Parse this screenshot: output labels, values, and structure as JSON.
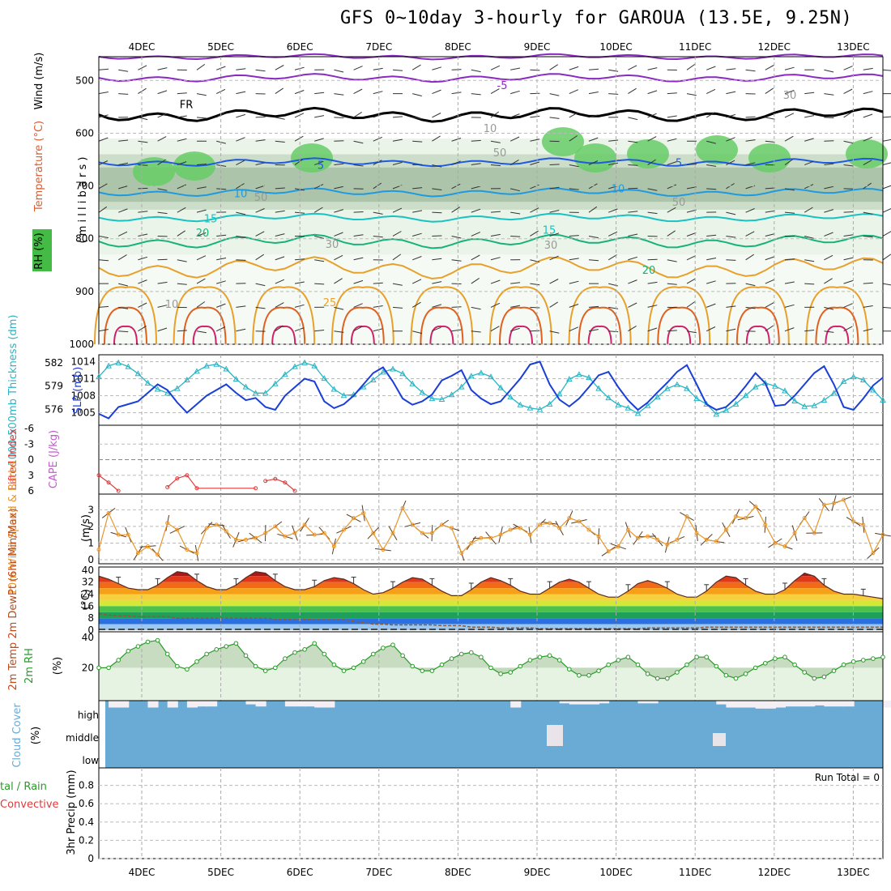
{
  "chart_data": {
    "title": "GFS 0~10day 3-hourly for GAROUA (13.5E, 9.25N)",
    "type": "meteogram",
    "dates": [
      "4DEC",
      "5DEC",
      "6DEC",
      "7DEC",
      "8DEC",
      "9DEC",
      "10DEC",
      "11DEC",
      "12DEC",
      "13DEC"
    ],
    "upper_panel": {
      "ylabels": {
        "wind": "Wind",
        "wind_unit": "(m/s)",
        "temp": "Temperature",
        "temp_unit": "(°C)",
        "rh": "RH (%)",
        "pressure": "( m i l l i b a r s )"
      },
      "pressure_ticks": [
        "500",
        "600",
        "700",
        "800",
        "900",
        "1000"
      ],
      "contour_labels": {
        "fr": "FR",
        "m5": "-5",
        "p5": "5",
        "p10": "10",
        "p15": "15",
        "p20": "20",
        "p25": "25",
        "rh10": "10",
        "rh30": "30",
        "rh50": "50"
      },
      "isotherm_levels_mb": {
        "m5": 495,
        "fr": 565,
        "p5": 655,
        "p10": 712,
        "p15": 760,
        "p20": 805
      }
    },
    "slp_panel": {
      "ylabel_thick": "1000-500mb Thickness (dm)",
      "ylabel_slp": "SLP (mb)",
      "thick_ticks": [
        "582",
        "579",
        "576"
      ],
      "slp_ticks": [
        "1014",
        "1011",
        "1008",
        "1005"
      ],
      "slp_series": [
        1004.8,
        1004,
        1006,
        1006.5,
        1007,
        1008.5,
        1010,
        1009,
        1006.8,
        1005,
        1006.5,
        1008,
        1009,
        1010,
        1008.5,
        1007.2,
        1007.6,
        1006,
        1005.5,
        1008,
        1009.5,
        1011,
        1010.5,
        1007,
        1005.8,
        1006.5,
        1008,
        1010,
        1012,
        1013,
        1010.5,
        1007.5,
        1006.4,
        1007,
        1008.2,
        1010.7,
        1011.5,
        1012.5,
        1009,
        1007.5,
        1006.5,
        1007,
        1009,
        1011,
        1013.5,
        1014,
        1010,
        1007.3,
        1006.1,
        1007.5,
        1009.5,
        1011.6,
        1012.2,
        1009.5,
        1007.2,
        1005.5,
        1006.8,
        1008.6,
        1010.3,
        1012.2,
        1013.4,
        1010,
        1006.5,
        1005.5,
        1006,
        1007.6,
        1009.7,
        1012,
        1010.2,
        1006.2,
        1006.4,
        1008,
        1010,
        1012,
        1013.2,
        1010,
        1006,
        1005.5,
        1007.5,
        1009.8,
        1011.2
      ],
      "thick_series": [
        580.2,
        581.6,
        582,
        581.5,
        580.6,
        579.4,
        578.6,
        578.1,
        578.7,
        579.8,
        580.9,
        581.6,
        581.8,
        581.2,
        579.9,
        578.9,
        578.1,
        578.1,
        579.3,
        580.5,
        581.5,
        582,
        581.6,
        580,
        578.6,
        577.8,
        577.9,
        578.9,
        579.8,
        580.8,
        581.2,
        580.6,
        579.3,
        578.2,
        577.4,
        577.3,
        577.9,
        578.9,
        580.3,
        580.7,
        580.2,
        578.8,
        577.6,
        576.6,
        576.2,
        576,
        576.7,
        578,
        579.9,
        580.5,
        580.1,
        578.7,
        577.5,
        576.6,
        576.2,
        575.5,
        576.5,
        577.6,
        578.7,
        579.2,
        578.7,
        577.4,
        576.7,
        575.4,
        575.9,
        576.7,
        577.8,
        578.9,
        579.4,
        579,
        578.4,
        577.1,
        576.4,
        576.5,
        577.2,
        578.1,
        579.6,
        580.2,
        579.8,
        578.5,
        577.2
      ]
    },
    "cape_panel": {
      "ylabel_li": "Lifted Index",
      "ylabel_cape": "CAPE (J/kg)",
      "li_ticks": [
        "-6",
        "-3",
        "0",
        "3",
        "6"
      ],
      "li_series": [
        [
          0,
          3
        ],
        [
          1,
          4.4
        ],
        [
          2,
          6
        ],
        [
          7,
          5.3
        ],
        [
          8,
          3.6
        ],
        [
          9,
          3
        ],
        [
          10,
          5.5
        ],
        [
          16,
          5.5
        ],
        [
          17,
          4.1
        ],
        [
          18,
          3.7
        ],
        [
          19,
          4.4
        ],
        [
          20,
          6
        ]
      ]
    },
    "wind_panel": {
      "ylabel": "10m Wind Speed & Barbs",
      "unit": "(m/s)",
      "ticks": [
        "0",
        "1",
        "2",
        "3"
      ],
      "series": [
        0.6,
        2.8,
        1.5,
        1.5,
        0.4,
        0.8,
        0.3,
        2.2,
        1.8,
        0.6,
        0.4,
        1.9,
        2.1,
        1.7,
        1.2,
        1.2,
        1.3,
        1.6,
        2,
        1.4,
        1.6,
        2.1,
        1.5,
        1.6,
        0.8,
        1.8,
        2.5,
        2.8,
        1.6,
        0.6,
        1.6,
        3.1,
        2.1,
        1.6,
        1.6,
        2.1,
        1.9,
        0.4,
        1,
        1.3,
        1.3,
        1.5,
        1.8,
        1.9,
        1.5,
        2.1,
        2.2,
        1.9,
        2.5,
        2.3,
        1.8,
        1.4,
        0.5,
        0.8,
        1.8,
        1.3,
        1.4,
        1.2,
        0.9,
        1.2,
        2.6,
        1.6,
        1.2,
        1.1,
        1.8,
        2.6,
        2.5,
        3.2,
        2.1,
        1,
        0.8,
        1.6,
        2.5,
        1.6,
        3.3,
        3.4,
        3.6,
        2.3,
        2.1,
        0.4,
        1.5
      ]
    },
    "temp_panel": {
      "ylabel": "2m Temp 2m DewPt (6hr Min/Max)",
      "unit": "(°C)",
      "ticks": [
        "40",
        "32",
        "24",
        "16",
        "8",
        "0"
      ],
      "temp_series": [
        36,
        34,
        31,
        28,
        27,
        27,
        30,
        35,
        39,
        38,
        33,
        29,
        27,
        27,
        30,
        35,
        39,
        38,
        33,
        29,
        27,
        27,
        29,
        33,
        35,
        34,
        31,
        27,
        24,
        25,
        28,
        32,
        35,
        34,
        30,
        26,
        23,
        23,
        27,
        32,
        35,
        33,
        30,
        26,
        24,
        24,
        28,
        32,
        34,
        32,
        28,
        24,
        22,
        22,
        26,
        31,
        33,
        31,
        28,
        24,
        22,
        22,
        26,
        32,
        36,
        35,
        30,
        26,
        24,
        24,
        27,
        33,
        38,
        36,
        30,
        26,
        24,
        24,
        23,
        22,
        21
      ],
      "dew_series": [
        11,
        10,
        9.5,
        9.5,
        9,
        9,
        9,
        9,
        8,
        8,
        8,
        8,
        8,
        8,
        8,
        8,
        8,
        8,
        7.5,
        7.5,
        7.5,
        7.5,
        7,
        7,
        7,
        7,
        6,
        5,
        4,
        4,
        3.5,
        3.5,
        3.5,
        3.5,
        3.5,
        3,
        3,
        3,
        2,
        2,
        2,
        1.5,
        1.5,
        1.5,
        1.5,
        1,
        1,
        1,
        1,
        1,
        1,
        1,
        1,
        1,
        1,
        1,
        1.5,
        1.5,
        1.5,
        1.5,
        1.5,
        1.5,
        2,
        2,
        2,
        2,
        2,
        2,
        2,
        2,
        2,
        2,
        2,
        2,
        2,
        2,
        2,
        2,
        2,
        2,
        2
      ]
    },
    "rh_panel": {
      "ylabel": "2m RH",
      "unit": "(%)",
      "ticks": [
        "40",
        "20"
      ],
      "series": [
        20,
        20,
        25,
        31,
        34,
        37,
        38,
        29,
        21,
        19,
        24,
        29,
        32,
        34,
        36,
        28,
        21,
        18,
        20,
        26,
        30,
        32,
        36,
        29,
        22,
        18,
        20,
        24,
        29,
        33,
        35,
        28,
        21,
        18,
        18,
        22,
        26,
        29,
        30,
        27,
        20,
        16,
        17,
        21,
        25,
        27,
        28,
        25,
        19,
        15,
        15,
        18,
        22,
        25,
        27,
        22,
        16,
        13,
        13,
        17,
        22,
        27,
        27,
        21,
        15,
        13,
        16,
        20,
        23,
        26,
        27,
        22,
        17,
        13,
        14,
        18,
        22,
        24,
        25,
        26,
        27
      ]
    },
    "cloud_panel": {
      "ylabel": "Cloud Cover",
      "unit": "(%)",
      "levels": [
        "high",
        "middle",
        "low"
      ],
      "high_series": [
        100,
        75,
        75,
        100,
        100,
        75,
        100,
        75,
        100,
        75,
        80,
        80,
        100,
        100,
        100,
        90,
        80,
        100,
        100,
        80,
        80,
        80,
        75,
        75,
        100,
        100,
        100,
        100,
        100,
        100,
        100,
        100,
        100,
        100,
        100,
        100,
        100,
        100,
        100,
        100,
        100,
        100,
        75,
        100,
        100,
        100,
        100,
        95,
        90,
        90,
        90,
        95,
        100,
        100,
        100,
        95,
        95,
        100,
        100,
        100,
        100,
        100,
        100,
        90,
        75,
        75,
        75,
        70,
        70,
        75,
        80,
        80,
        80,
        85,
        80,
        80,
        80,
        100,
        100,
        100,
        75
      ],
      "middle_gap_series": [
        0,
        0,
        0,
        0,
        0,
        0,
        0,
        0,
        0,
        0,
        0,
        0,
        0,
        0,
        0,
        0,
        0,
        0,
        0,
        0,
        0,
        0,
        0,
        0,
        0,
        0,
        0,
        0,
        0,
        0,
        0,
        0,
        0,
        0,
        0,
        0,
        0,
        0,
        0,
        0,
        0,
        0,
        0,
        0,
        0,
        0,
        0,
        0,
        0,
        0,
        0,
        0,
        0,
        0,
        0,
        0,
        0,
        0,
        0,
        0,
        0,
        0,
        0,
        0,
        0,
        0,
        0,
        0,
        0,
        0,
        0,
        0,
        0,
        0,
        0,
        0,
        0,
        0,
        0,
        0,
        0
      ]
    },
    "precip_panel": {
      "ylabel": "3hr Precip (mm)",
      "legend_total": "tal / Rain",
      "legend_conv": "Convective",
      "run_total": "Run Total = 0",
      "ticks": [
        "0.8",
        "0.6",
        "0.4",
        "0.2",
        "0"
      ],
      "series": []
    },
    "colors": {
      "slp": "#1a3fd6",
      "thick": "#2ab5c5",
      "li": "#e03a3a",
      "cape": "#c55ad0",
      "wind": "#e8962b",
      "rh": "#2a9a2a",
      "cloud": "#6aabd6",
      "fr": "#000000",
      "cold": "#8a2ac0",
      "temp_blue": "#1f5ae0",
      "temp_lblue": "#1f9ae0",
      "temp_cyan": "#16c2c2",
      "temp_green": "#16b27a",
      "temp_orange": "#e8a02a",
      "temp_red": "#e06020",
      "temp_magenta": "#d0206a"
    }
  }
}
